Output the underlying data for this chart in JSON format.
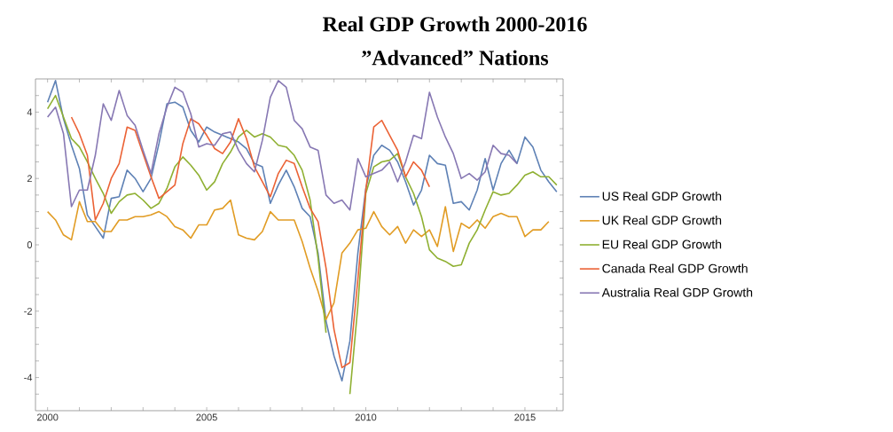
{
  "chart_data": {
    "type": "line",
    "title": "Real GDP Growth 2000-2016",
    "subtitle": "”Advanced” Nations",
    "x": [
      2000,
      2000.25,
      2000.5,
      2000.75,
      2001,
      2001.25,
      2001.5,
      2001.75,
      2002,
      2002.25,
      2002.5,
      2002.75,
      2003,
      2003.25,
      2003.5,
      2003.75,
      2004,
      2004.25,
      2004.5,
      2004.75,
      2005,
      2005.25,
      2005.5,
      2005.75,
      2006,
      2006.25,
      2006.5,
      2006.75,
      2007,
      2007.25,
      2007.5,
      2007.75,
      2008,
      2008.25,
      2008.5,
      2008.75,
      2009,
      2009.25,
      2009.5,
      2009.75,
      2010,
      2010.25,
      2010.5,
      2010.75,
      2011,
      2011.25,
      2011.5,
      2011.75,
      2012,
      2012.25,
      2012.5,
      2012.75,
      2013,
      2013.25,
      2013.5,
      2013.75,
      2014,
      2014.25,
      2014.5,
      2014.75,
      2015,
      2015.25,
      2015.5,
      2015.75,
      2016
    ],
    "series": [
      {
        "name": "US Real GDP Growth",
        "color": "#5e81b5",
        "values": [
          4.3,
          4.95,
          3.8,
          3.0,
          2.3,
          0.9,
          0.55,
          0.2,
          1.4,
          1.45,
          2.25,
          2.0,
          1.6,
          2.0,
          3.05,
          4.25,
          4.3,
          4.15,
          3.45,
          3.1,
          3.55,
          3.4,
          3.3,
          3.2,
          3.1,
          2.9,
          2.45,
          2.35,
          1.25,
          1.8,
          2.25,
          1.75,
          1.1,
          0.85,
          -0.25,
          -2.3,
          -3.35,
          -4.1,
          -2.9,
          -0.25,
          1.7,
          2.7,
          3.0,
          2.85,
          2.5,
          1.9,
          1.2,
          1.65,
          2.7,
          2.45,
          2.4,
          1.25,
          1.3,
          1.05,
          1.65,
          2.6,
          1.65,
          2.45,
          2.85,
          2.45,
          3.25,
          2.95,
          2.25,
          1.9,
          1.6
        ]
      },
      {
        "name": "UK Real GDP Growth",
        "color": "#e19c24",
        "values": [
          1.0,
          0.75,
          0.3,
          0.15,
          1.3,
          0.7,
          0.7,
          0.4,
          0.4,
          0.75,
          0.75,
          0.85,
          0.85,
          0.9,
          1.0,
          0.85,
          0.55,
          0.45,
          0.2,
          0.6,
          0.6,
          1.05,
          1.1,
          1.35,
          0.3,
          0.2,
          0.15,
          0.4,
          1.0,
          0.75,
          0.75,
          0.75,
          0.1,
          -0.7,
          -1.4,
          -2.25,
          -1.75,
          -0.25,
          0.05,
          0.45,
          0.5,
          1.0,
          0.55,
          0.3,
          0.55,
          0.05,
          0.45,
          0.25,
          0.45,
          -0.05,
          1.15,
          -0.2,
          0.65,
          0.5,
          0.75,
          0.5,
          0.85,
          0.95,
          0.85,
          0.85,
          0.25,
          0.45,
          0.45,
          0.7,
          null
        ]
      },
      {
        "name": "EU Real GDP Growth",
        "color": "#8fb032",
        "values": [
          4.1,
          4.5,
          3.85,
          3.2,
          2.95,
          2.5,
          2.0,
          1.55,
          0.95,
          1.3,
          1.5,
          1.55,
          1.35,
          1.1,
          1.25,
          1.7,
          2.35,
          2.65,
          2.4,
          2.1,
          1.65,
          1.9,
          2.45,
          2.8,
          3.25,
          3.45,
          3.25,
          3.35,
          3.25,
          3.0,
          2.95,
          2.7,
          2.25,
          1.35,
          -0.4,
          -2.65,
          null,
          null,
          -4.5,
          -1.85,
          1.55,
          2.35,
          2.5,
          2.55,
          2.75,
          2.05,
          1.55,
          0.85,
          -0.15,
          -0.4,
          -0.5,
          -0.65,
          -0.6,
          0.05,
          0.45,
          1.05,
          1.6,
          1.5,
          1.55,
          1.8,
          2.1,
          2.2,
          2.05,
          2.05,
          1.8
        ]
      },
      {
        "name": "Canada Real GDP Growth",
        "color": "#eb6235",
        "values": [
          null,
          null,
          null,
          3.85,
          3.35,
          2.7,
          0.75,
          1.25,
          2.0,
          2.45,
          3.55,
          3.45,
          2.75,
          2.05,
          1.4,
          1.6,
          1.8,
          3.05,
          3.8,
          3.65,
          3.3,
          2.9,
          2.75,
          3.1,
          3.8,
          3.2,
          2.35,
          1.9,
          1.45,
          2.15,
          2.55,
          2.45,
          1.75,
          1.1,
          0.7,
          -0.7,
          -2.55,
          -3.7,
          -3.55,
          -1.05,
          1.65,
          3.55,
          3.75,
          3.3,
          2.85,
          2.05,
          2.5,
          2.25,
          1.75,
          null,
          null,
          null,
          null,
          null,
          null,
          null,
          null,
          null,
          null,
          null,
          null,
          null,
          null,
          null,
          null
        ]
      },
      {
        "name": "Australia Real GDP Growth",
        "color": "#8778b3",
        "values": [
          3.85,
          4.15,
          3.35,
          1.15,
          1.65,
          1.65,
          2.7,
          4.25,
          3.75,
          4.65,
          3.9,
          3.6,
          2.85,
          2.15,
          3.35,
          4.15,
          4.75,
          4.6,
          3.95,
          2.95,
          3.05,
          3.0,
          3.35,
          3.4,
          2.85,
          2.45,
          2.2,
          3.15,
          4.45,
          4.95,
          4.75,
          3.75,
          3.5,
          2.95,
          2.85,
          1.5,
          1.25,
          1.35,
          1.05,
          2.6,
          2.05,
          2.15,
          2.25,
          2.5,
          1.9,
          2.5,
          3.3,
          3.2,
          4.6,
          3.85,
          3.25,
          2.75,
          2.0,
          2.15,
          1.95,
          2.2,
          3.0,
          2.75,
          2.7,
          2.45,
          null,
          null,
          null,
          null,
          null
        ]
      }
    ],
    "xlim": [
      1999.62,
      2016.2
    ],
    "ylim": [
      -5,
      5
    ],
    "xticks": [
      2000,
      {
        "value": 2001,
        "label": null
      },
      {
        "value": 2002,
        "label": null
      },
      {
        "value": 2003,
        "label": null
      },
      {
        "value": 2004,
        "label": null
      },
      2005,
      {
        "value": 2006,
        "label": null
      },
      {
        "value": 2007,
        "label": null
      },
      {
        "value": 2008,
        "label": null
      },
      {
        "value": 2009,
        "label": null
      },
      2010,
      {
        "value": 2011,
        "label": null
      },
      {
        "value": 2012,
        "label": null
      },
      {
        "value": 2013,
        "label": null
      },
      {
        "value": 2014,
        "label": null
      },
      2015,
      {
        "value": 2016,
        "label": null
      }
    ],
    "yticks": [
      {
        "value": -4.5,
        "label": null
      },
      -4,
      {
        "value": -3.5,
        "label": null
      },
      {
        "value": -3,
        "label": null
      },
      {
        "value": -2.5,
        "label": null
      },
      -2,
      {
        "value": -1.5,
        "label": null
      },
      {
        "value": -1,
        "label": null
      },
      {
        "value": -0.5,
        "label": null
      },
      0,
      {
        "value": 0.5,
        "label": null
      },
      {
        "value": 1,
        "label": null
      },
      {
        "value": 1.5,
        "label": null
      },
      2,
      {
        "value": 2.5,
        "label": null
      },
      {
        "value": 3,
        "label": null
      },
      {
        "value": 3.5,
        "label": null
      },
      4,
      {
        "value": 4.5,
        "label": null
      }
    ],
    "legend": "right"
  }
}
